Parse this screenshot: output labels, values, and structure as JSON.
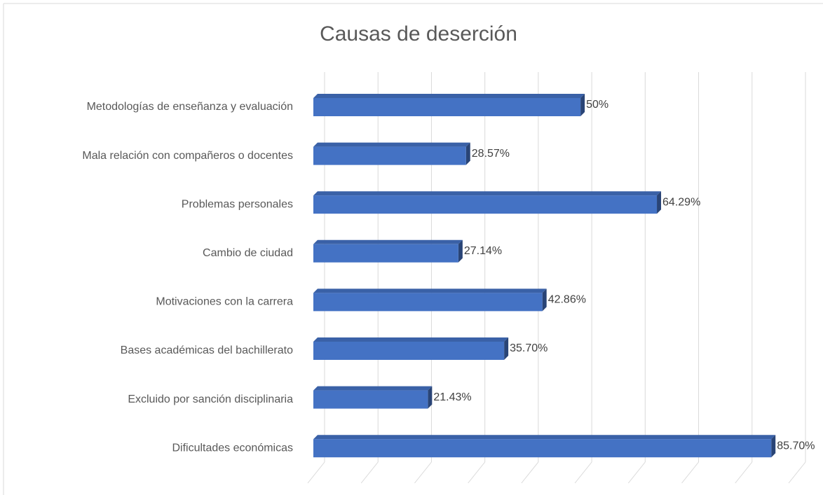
{
  "chart_data": {
    "type": "bar3d",
    "orientation": "horizontal",
    "title": "Causas de deserción",
    "categories": [
      "Metodologías de enseñanza y evaluación",
      "Mala relación con compañeros o docentes",
      "Problemas personales",
      "Cambio de ciudad",
      "Motivaciones con la carrera",
      "Bases académicas del bachillerato",
      "Excluido por sanción disciplinaria",
      "Dificultades económicas"
    ],
    "values": [
      50,
      28.57,
      64.29,
      27.14,
      42.86,
      35.7,
      21.43,
      85.7
    ],
    "value_labels": [
      "50%",
      "28.57%",
      "64.29%",
      "27.14%",
      "42.86%",
      "35.70%",
      "21.43%",
      "85.70%"
    ],
    "color": "#4472c4",
    "xlim": [
      0,
      90
    ],
    "xticks": [
      0,
      10,
      20,
      30,
      40,
      50,
      60,
      70,
      80,
      90
    ],
    "grid": true
  }
}
